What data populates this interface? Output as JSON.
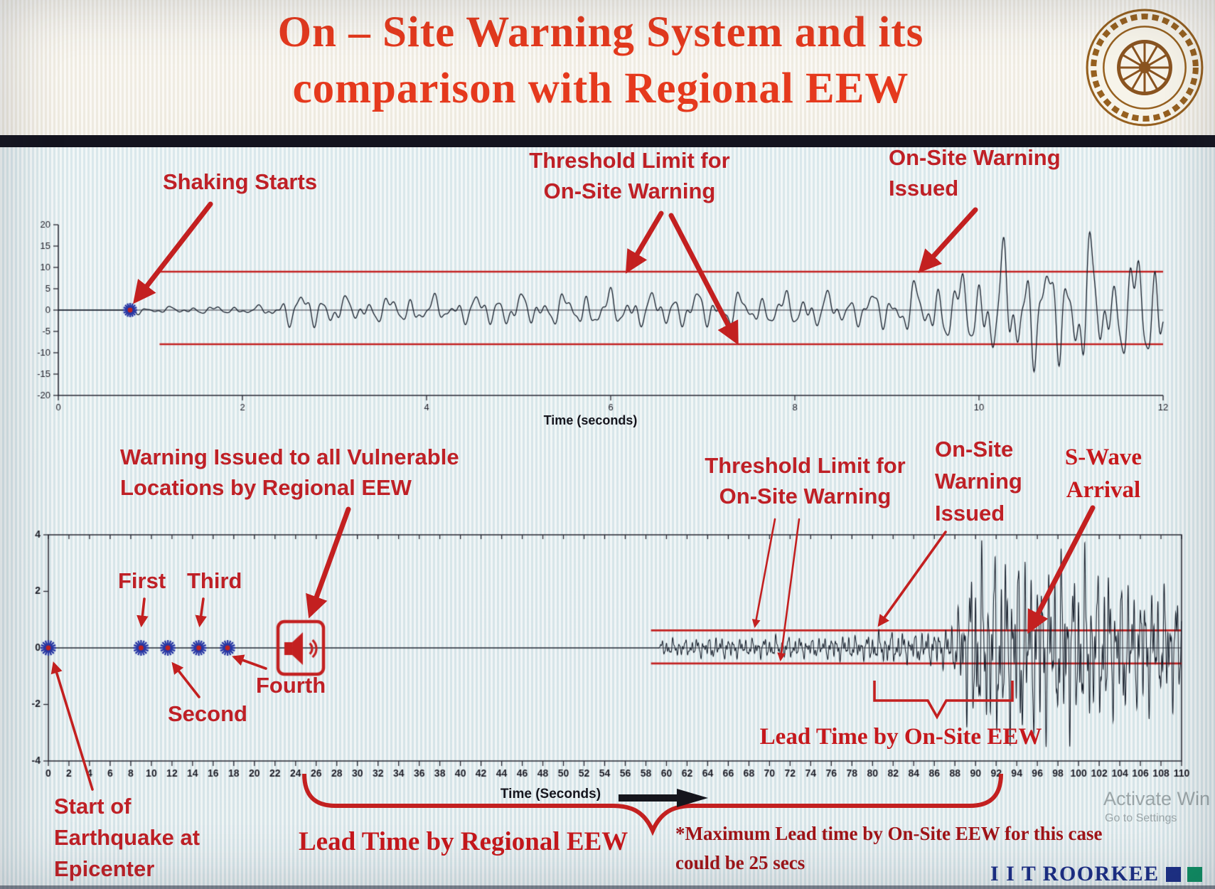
{
  "header": {
    "title_line1": "On – Site Warning System and its",
    "title_line2": "comparison with Regional EEW",
    "logo_name": "IIT Roorkee emblem"
  },
  "annotations": {
    "top": {
      "shaking_starts": "Shaking Starts",
      "threshold_line1": "Threshold Limit for",
      "threshold_line2": "On-Site Warning",
      "warning_issued_line1": "On-Site Warning",
      "warning_issued_line2": "Issued"
    },
    "bottom": {
      "regional_warning_line1": "Warning Issued to all Vulnerable",
      "regional_warning_line2": "Locations by Regional EEW",
      "first": "First",
      "second": "Second",
      "third": "Third",
      "fourth": "Fourth",
      "threshold_line1": "Threshold Limit for",
      "threshold_line2": "On-Site Warning",
      "onsite_warning_line1": "On-Site",
      "onsite_warning_line2": "Warning",
      "onsite_warning_line3": "Issued",
      "swave_line1": "S-Wave",
      "swave_line2": "Arrival",
      "lead_time_onsite": "Lead Time by On-Site EEW",
      "lead_time_regional": "Lead Time by Regional EEW",
      "start_line1": "Start of",
      "start_line2": "Earthquake at",
      "start_line3": "Epicenter",
      "note_line1": "*Maximum Lead time by On-Site EEW for this case",
      "note_line2": "could be 25 secs"
    }
  },
  "footer": {
    "brand": "I I T ROORKEE",
    "watermark_line1": "Activate Win",
    "watermark_line2": "Go to Settings"
  },
  "colors": {
    "title_red": "#e5391d",
    "annotation_red": "#bf2026",
    "arrow_red": "#c32020",
    "threshold_red": "#c32020",
    "waveform": "#161e2b",
    "star_blue": "#2736a3",
    "star_center": "#bf2020",
    "brand_navy": "#1b2d85",
    "divider_dark": "#14141f"
  },
  "chart_data": [
    {
      "type": "line",
      "name": "on-site-ground-motion",
      "title": "",
      "xlabel": "Time (seconds)",
      "xlim": [
        0,
        12
      ],
      "xticks": [
        0,
        2,
        4,
        6,
        8,
        10,
        12
      ],
      "ylim": [
        -20,
        20
      ],
      "yticks": [
        20,
        15,
        10,
        5,
        0,
        -5,
        -10,
        -15,
        -20
      ],
      "grid": false,
      "threshold": {
        "upper": 9,
        "lower": -8,
        "start_x": 1.1
      },
      "events": {
        "shaking_start": 0.78,
        "onsite_warning_issued": 9.3
      },
      "series": [
        {
          "name": "acceleration record",
          "color": "#161e2b"
        }
      ],
      "envelope": [
        [
          0,
          0
        ],
        [
          0.72,
          0
        ],
        [
          0.78,
          1.6
        ],
        [
          0.95,
          0.7
        ],
        [
          1.6,
          0.9
        ],
        [
          2.2,
          1.0
        ],
        [
          2.45,
          3.6
        ],
        [
          2.8,
          4.4
        ],
        [
          3.2,
          2.8
        ],
        [
          3.8,
          3.4
        ],
        [
          4.3,
          3.0
        ],
        [
          4.8,
          4.1
        ],
        [
          5.3,
          3.5
        ],
        [
          5.9,
          4.6
        ],
        [
          6.4,
          4.0
        ],
        [
          7.0,
          4.4
        ],
        [
          7.6,
          3.6
        ],
        [
          8.1,
          4.6
        ],
        [
          8.6,
          3.6
        ],
        [
          9.0,
          4.8
        ],
        [
          9.3,
          6.2
        ],
        [
          9.6,
          7.5
        ],
        [
          9.9,
          9.5
        ],
        [
          10.2,
          13
        ],
        [
          10.45,
          17
        ],
        [
          10.7,
          11
        ],
        [
          10.95,
          14.5
        ],
        [
          11.2,
          16.5
        ],
        [
          11.45,
          9.5
        ],
        [
          11.7,
          15
        ],
        [
          12,
          13
        ]
      ],
      "frequencies": [
        [
          4.2,
          0.55
        ],
        [
          7.3,
          0.3
        ],
        [
          2.1,
          0.28
        ],
        [
          11.0,
          0.18
        ]
      ]
    },
    {
      "type": "line",
      "name": "regional-ground-motion",
      "title": "",
      "xlabel": "Time (Seconds)",
      "xlim": [
        0,
        110
      ],
      "xticks": [
        0,
        2,
        4,
        6,
        8,
        10,
        12,
        14,
        16,
        18,
        20,
        22,
        24,
        26,
        28,
        30,
        32,
        34,
        36,
        38,
        40,
        42,
        44,
        46,
        48,
        50,
        52,
        54,
        56,
        58,
        60,
        62,
        64,
        66,
        68,
        70,
        72,
        74,
        76,
        78,
        80,
        82,
        84,
        86,
        88,
        90,
        92,
        94,
        96,
        98,
        100,
        102,
        104,
        106,
        108,
        110
      ],
      "ylim": [
        -4,
        4
      ],
      "yticks": [
        4,
        2,
        0,
        -2,
        -4
      ],
      "grid": false,
      "threshold": {
        "upper": 0.62,
        "lower": -0.55,
        "start_x": 58.5
      },
      "events": {
        "earthquake_start": 0,
        "p_wave_triggers": [
          9,
          11.6,
          14.6,
          17.4
        ],
        "regional_warning_issued": 24.5,
        "onsite_warning_issued": 80,
        "s_wave_arrival": 93.5,
        "lead_time_onsite_span": [
          80,
          93.5
        ],
        "lead_time_regional_span": [
          24.8,
          92.5
        ],
        "max_lead_time_onsite_secs": 25
      },
      "series": [
        {
          "name": "acceleration record",
          "color": "#161e2b"
        }
      ],
      "envelope": [
        [
          0,
          0
        ],
        [
          59.2,
          0
        ],
        [
          59.6,
          0.3
        ],
        [
          62,
          0.28
        ],
        [
          65,
          0.38
        ],
        [
          68,
          0.3
        ],
        [
          71,
          0.4
        ],
        [
          74,
          0.32
        ],
        [
          77,
          0.42
        ],
        [
          79,
          0.38
        ],
        [
          80,
          0.5
        ],
        [
          82,
          0.55
        ],
        [
          84,
          0.5
        ],
        [
          86,
          0.6
        ],
        [
          87.5,
          0.7
        ],
        [
          88.3,
          1.3
        ],
        [
          89.2,
          2.4
        ],
        [
          90.2,
          3.4
        ],
        [
          91.2,
          2.6
        ],
        [
          92.2,
          3.5
        ],
        [
          93.2,
          2.9
        ],
        [
          94.5,
          3.4
        ],
        [
          95.5,
          2.7
        ],
        [
          96.5,
          3.2
        ],
        [
          97.5,
          2.5
        ],
        [
          98.5,
          3.3
        ],
        [
          99.5,
          2.7
        ],
        [
          100.5,
          3.1
        ],
        [
          101.5,
          2.3
        ],
        [
          102.5,
          2.9
        ],
        [
          103.5,
          2.1
        ],
        [
          104.5,
          2.5
        ],
        [
          105.5,
          1.9
        ],
        [
          106.5,
          2.3
        ],
        [
          107.5,
          1.8
        ],
        [
          108.5,
          2.1
        ],
        [
          110,
          1.7
        ]
      ],
      "frequencies": [
        [
          1.7,
          0.5
        ],
        [
          3.1,
          0.33
        ],
        [
          0.9,
          0.3
        ],
        [
          5.2,
          0.22
        ]
      ]
    }
  ]
}
